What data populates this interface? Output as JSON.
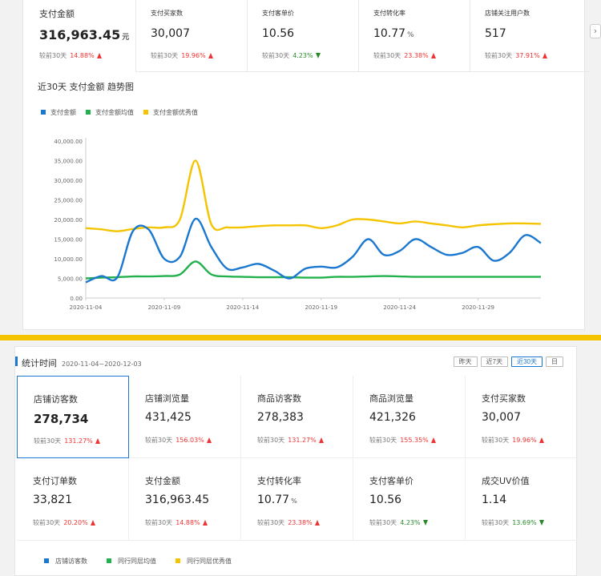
{
  "top_kpis": [
    {
      "label": "支付金额",
      "value": "316,963.45",
      "unit": "元",
      "compare_label": "较前30天",
      "change": "14.88%",
      "direction": "up"
    },
    {
      "label": "支付买家数",
      "value": "30,007",
      "unit": "",
      "compare_label": "较前30天",
      "change": "19.96%",
      "direction": "up"
    },
    {
      "label": "支付客单价",
      "value": "10.56",
      "unit": "",
      "compare_label": "较前30天",
      "change": "4.23%",
      "direction": "down"
    },
    {
      "label": "支付转化率",
      "value": "10.77",
      "unit": "%",
      "compare_label": "较前30天",
      "change": "23.38%",
      "direction": "up"
    },
    {
      "label": "店铺关注用户数",
      "value": "517",
      "unit": "",
      "compare_label": "较前30天",
      "change": "37.91%",
      "direction": "up"
    }
  ],
  "next_icon": "chevron-right-icon",
  "trend_chart_title": "近30天 支付金额 趋势图",
  "chart_data": {
    "type": "line",
    "title": "近30天 支付金额 趋势图",
    "x": [
      "2020-11-04",
      "2020-11-05",
      "2020-11-06",
      "2020-11-07",
      "2020-11-08",
      "2020-11-09",
      "2020-11-10",
      "2020-11-11",
      "2020-11-12",
      "2020-11-13",
      "2020-11-14",
      "2020-11-15",
      "2020-11-16",
      "2020-11-17",
      "2020-11-18",
      "2020-11-19",
      "2020-11-20",
      "2020-11-21",
      "2020-11-22",
      "2020-11-23",
      "2020-11-24",
      "2020-11-25",
      "2020-11-26",
      "2020-11-27",
      "2020-11-28",
      "2020-11-29",
      "2020-11-30",
      "2020-12-01",
      "2020-12-02",
      "2020-12-03"
    ],
    "x_tick_labels": [
      "2020-11-04",
      "2020-11-09",
      "2020-11-14",
      "2020-11-19",
      "2020-11-24",
      "2020-11-29"
    ],
    "y_tick_labels": [
      "0.00",
      "5,000.00",
      "10,000.00",
      "15,000.00",
      "20,000.00",
      "25,000.00",
      "30,000.00",
      "35,000.00",
      "40,000.00"
    ],
    "ylim": [
      0,
      40000
    ],
    "legend_position": "top-left",
    "grid": false,
    "series": [
      {
        "name": "支付金额",
        "color": "#1a78d0",
        "values": [
          4000,
          5600,
          5200,
          17000,
          17500,
          10000,
          10500,
          20200,
          13000,
          7500,
          7800,
          8700,
          7000,
          5000,
          7500,
          8000,
          7800,
          10500,
          15000,
          11000,
          12000,
          15000,
          13000,
          11000,
          11500,
          13000,
          9500,
          11500,
          16000,
          14000
        ]
      },
      {
        "name": "支付金额均值",
        "color": "#22b14c",
        "values": [
          5000,
          5200,
          5300,
          5500,
          5500,
          5600,
          6000,
          9300,
          6000,
          5500,
          5400,
          5300,
          5300,
          5300,
          5200,
          5200,
          5400,
          5400,
          5500,
          5600,
          5500,
          5400,
          5400,
          5400,
          5400,
          5400,
          5400,
          5400,
          5400,
          5400
        ]
      },
      {
        "name": "支付金额优秀值",
        "color": "#f5c400",
        "values": [
          17800,
          17500,
          17000,
          17600,
          18000,
          18000,
          20000,
          35000,
          18800,
          18000,
          18000,
          18300,
          18500,
          18500,
          18500,
          17800,
          18500,
          20000,
          20000,
          19500,
          19000,
          19500,
          19000,
          18500,
          18000,
          18500,
          18800,
          19000,
          19000,
          18900
        ]
      }
    ]
  },
  "stats_section": {
    "title": "统计时间",
    "range": "2020-11-04~2020-12-03",
    "buttons": [
      {
        "label": "昨天",
        "active": false
      },
      {
        "label": "近7天",
        "active": false
      },
      {
        "label": "近30天",
        "active": true
      },
      {
        "label": "日",
        "active": false
      }
    ]
  },
  "metrics": [
    {
      "label": "店铺访客数",
      "value": "278,734",
      "unit": "",
      "compare_label": "较前30天",
      "change": "131.27%",
      "direction": "up",
      "selected": true
    },
    {
      "label": "店铺浏览量",
      "value": "431,425",
      "unit": "",
      "compare_label": "较前30天",
      "change": "156.03%",
      "direction": "up"
    },
    {
      "label": "商品访客数",
      "value": "278,383",
      "unit": "",
      "compare_label": "较前30天",
      "change": "131.27%",
      "direction": "up"
    },
    {
      "label": "商品浏览量",
      "value": "421,326",
      "unit": "",
      "compare_label": "较前30天",
      "change": "155.35%",
      "direction": "up"
    },
    {
      "label": "支付买家数",
      "value": "30,007",
      "unit": "",
      "compare_label": "较前30天",
      "change": "19.96%",
      "direction": "up"
    },
    {
      "label": "支付订单数",
      "value": "33,821",
      "unit": "",
      "compare_label": "较前30天",
      "change": "20.20%",
      "direction": "up"
    },
    {
      "label": "支付金额",
      "value": "316,963.45",
      "unit": "",
      "compare_label": "较前30天",
      "change": "14.88%",
      "direction": "up"
    },
    {
      "label": "支付转化率",
      "value": "10.77",
      "unit": "%",
      "compare_label": "较前30天",
      "change": "23.38%",
      "direction": "up"
    },
    {
      "label": "支付客单价",
      "value": "10.56",
      "unit": "",
      "compare_label": "较前30天",
      "change": "4.23%",
      "direction": "down"
    },
    {
      "label": "成交UV价值",
      "value": "1.14",
      "unit": "",
      "compare_label": "较前30天",
      "change": "13.69%",
      "direction": "down"
    }
  ],
  "bottom_legend": [
    {
      "name": "店铺访客数",
      "color": "#1a78d0"
    },
    {
      "name": "同行同层均值",
      "color": "#22b14c"
    },
    {
      "name": "同行同层优秀值",
      "color": "#f5c400"
    }
  ]
}
